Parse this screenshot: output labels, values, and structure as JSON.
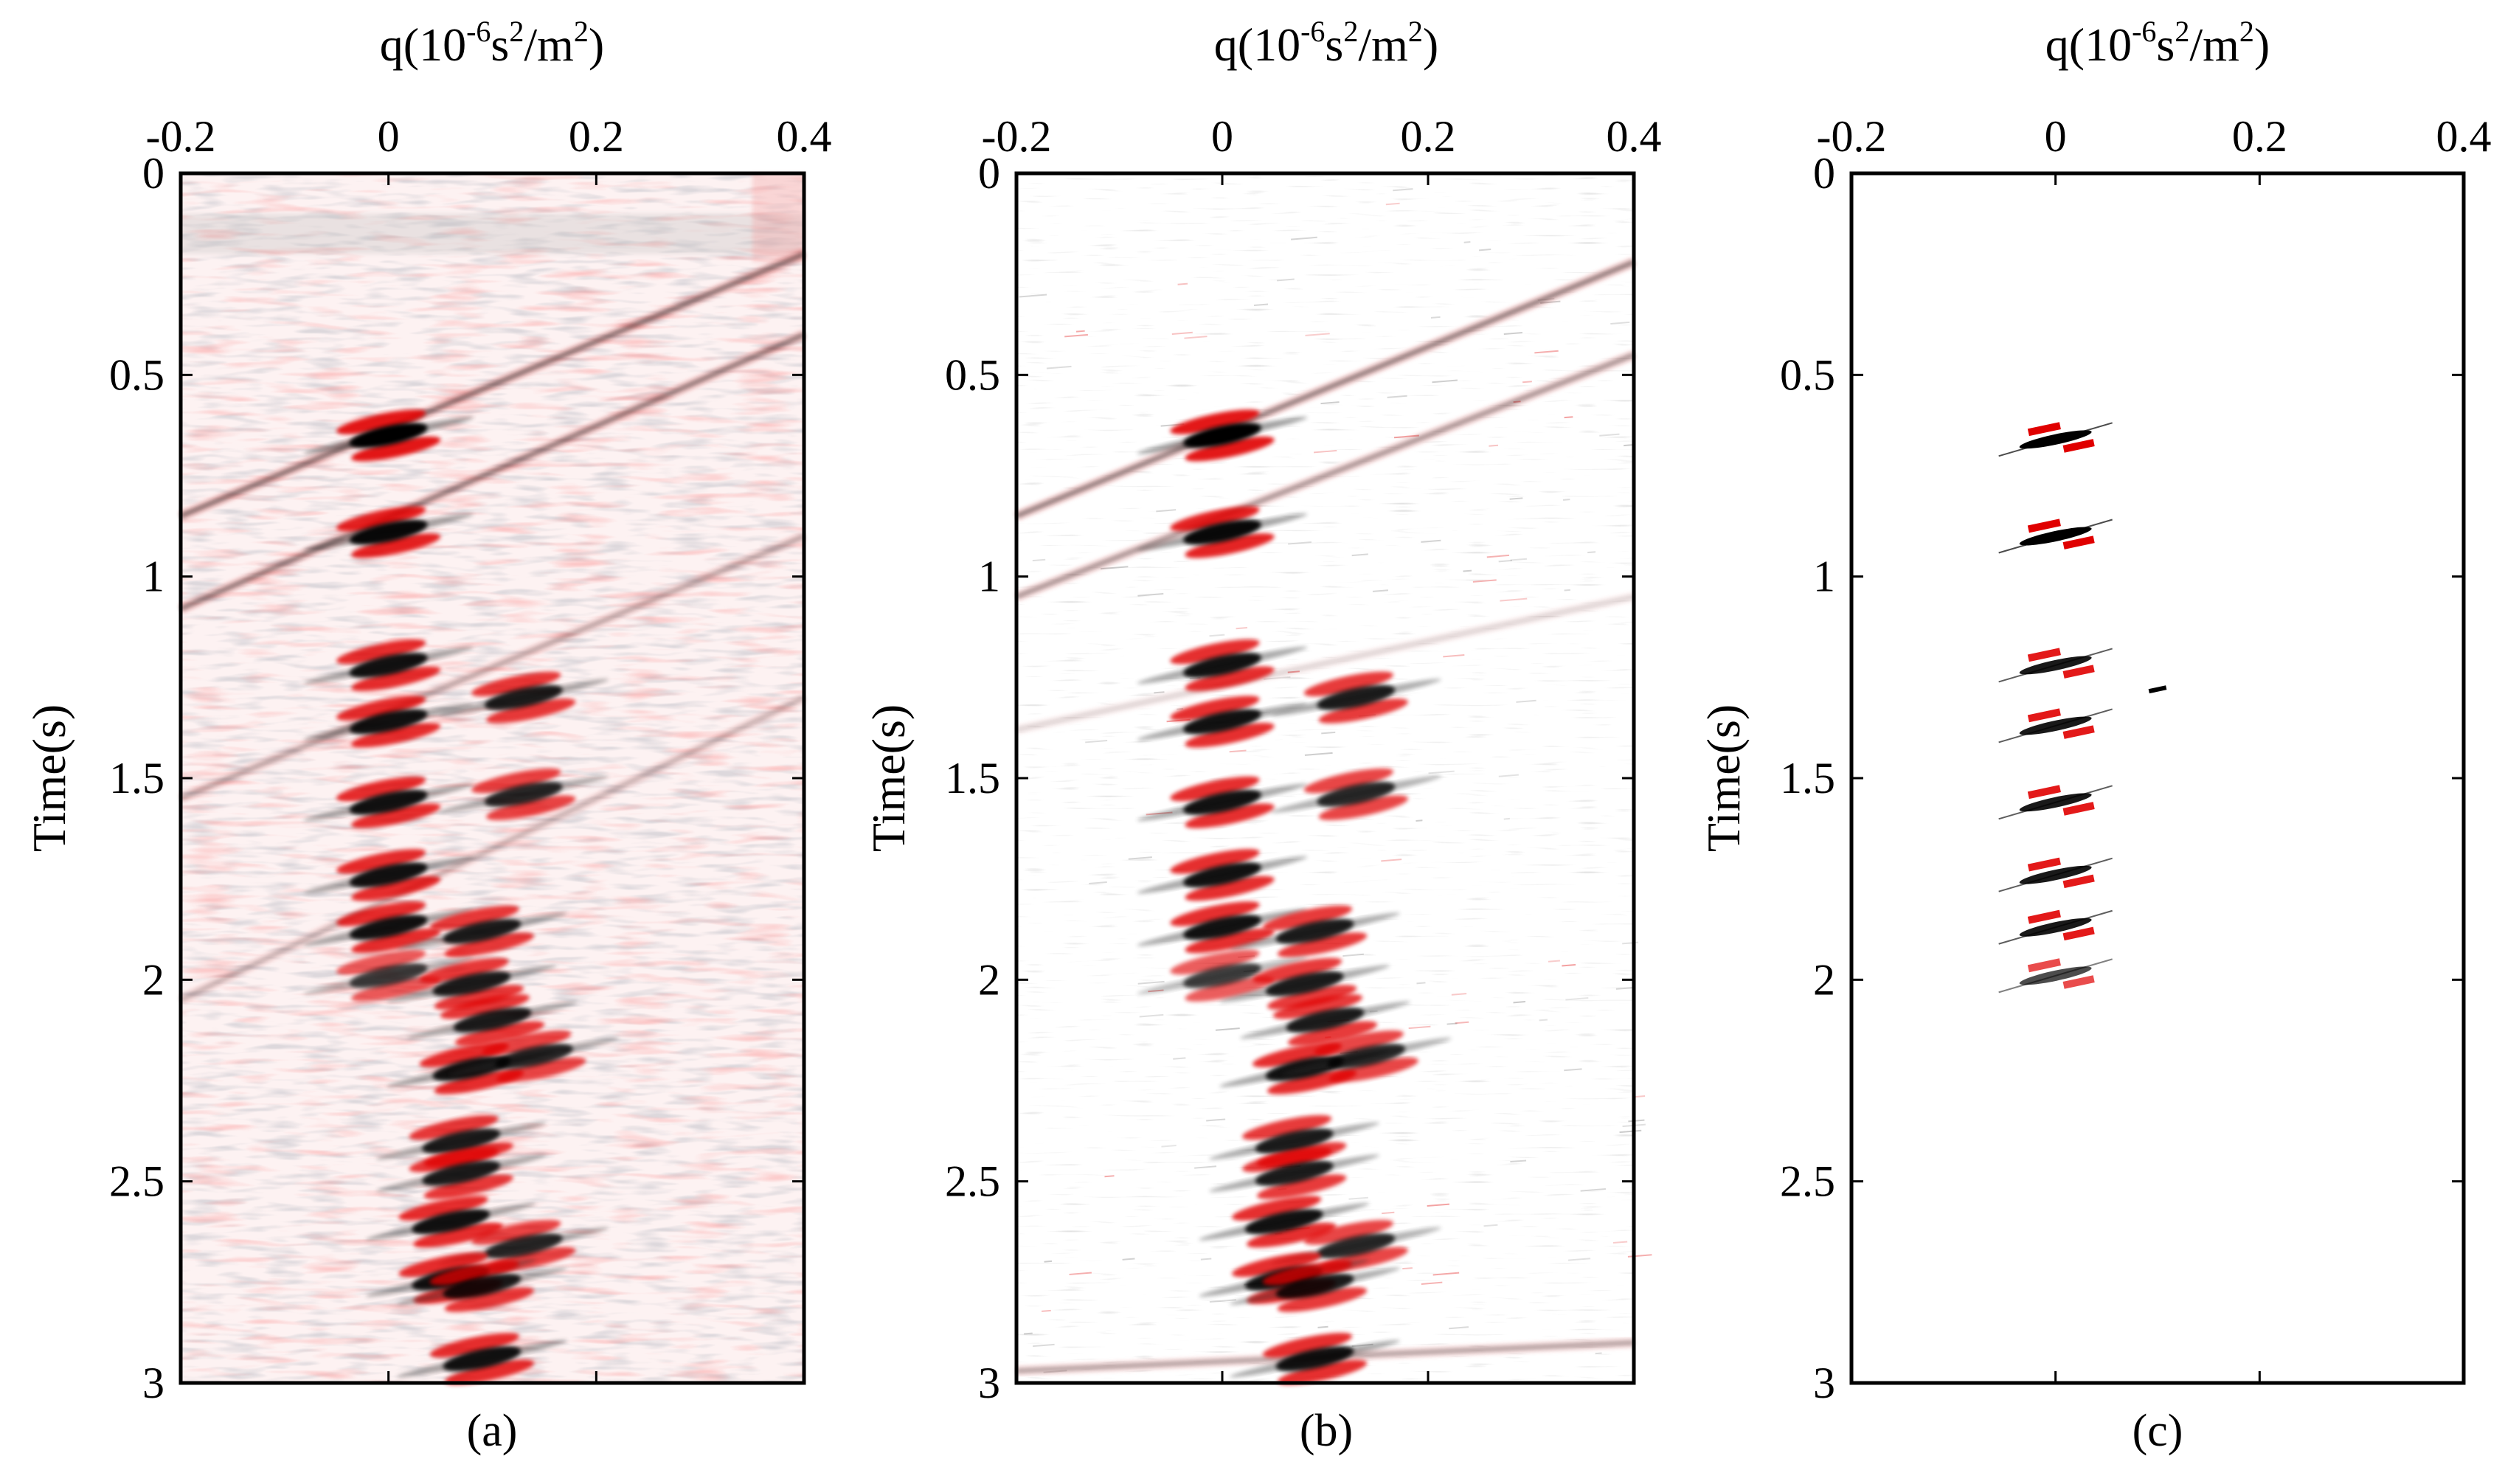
{
  "chart_data": [
    {
      "type": "heatmap",
      "panel_label": "(a)",
      "xlabel": "q(10-6s2/m2)",
      "xlabel_parts": {
        "prefix": "q(10",
        "exp1": "-6",
        "mid1": "s",
        "exp2": "2",
        "mid2": "/m",
        "exp3": "2",
        "suffix": ")"
      },
      "ylabel": "Time(s)",
      "xlim": [
        -0.2,
        0.4
      ],
      "ylim": [
        0,
        3
      ],
      "xticks": [
        -0.2,
        0,
        0.2,
        0.4
      ],
      "xtick_labels": [
        "-0.2",
        "0",
        "0.2",
        "0.4"
      ],
      "yticks": [
        0,
        0.5,
        1,
        1.5,
        2,
        2.5,
        3
      ],
      "ytick_labels": [
        "0",
        "0.5",
        "1",
        "1.5",
        "2",
        "2.5",
        "3"
      ],
      "x_axis_position": "top",
      "y_reversed": true,
      "background": "noisy",
      "colors": {
        "positive": "#000000",
        "negative": "#e00000"
      },
      "noise_strength": 1.0,
      "linear_events": [
        {
          "t_at_min": 0.85,
          "t_at_max": 0.2,
          "strength": 0.55
        },
        {
          "t_at_min": 1.08,
          "t_at_max": 0.4,
          "strength": 0.5
        },
        {
          "t_at_min": 1.55,
          "t_at_max": 0.9,
          "strength": 0.3
        },
        {
          "t_at_min": 2.05,
          "t_at_max": 1.3,
          "strength": 0.25
        }
      ],
      "events": [
        {
          "q": 0.0,
          "t": 0.65,
          "strength": 1.0
        },
        {
          "q": 0.0,
          "t": 0.89,
          "strength": 0.95
        },
        {
          "q": 0.0,
          "t": 1.22,
          "strength": 0.9
        },
        {
          "q": 0.0,
          "t": 1.36,
          "strength": 0.9
        },
        {
          "q": 0.13,
          "t": 1.3,
          "strength": 0.85
        },
        {
          "q": 0.0,
          "t": 1.56,
          "strength": 0.9
        },
        {
          "q": 0.13,
          "t": 1.54,
          "strength": 0.8
        },
        {
          "q": 0.0,
          "t": 1.74,
          "strength": 0.9
        },
        {
          "q": 0.0,
          "t": 1.87,
          "strength": 0.9
        },
        {
          "q": 0.09,
          "t": 1.88,
          "strength": 0.85
        },
        {
          "q": 0.0,
          "t": 1.99,
          "strength": 0.7
        },
        {
          "q": 0.08,
          "t": 2.01,
          "strength": 0.85
        },
        {
          "q": 0.1,
          "t": 2.1,
          "strength": 0.85
        },
        {
          "q": 0.08,
          "t": 2.22,
          "strength": 0.9
        },
        {
          "q": 0.14,
          "t": 2.19,
          "strength": 0.8
        },
        {
          "q": 0.07,
          "t": 2.4,
          "strength": 0.85
        },
        {
          "q": 0.07,
          "t": 2.48,
          "strength": 0.85
        },
        {
          "q": 0.06,
          "t": 2.6,
          "strength": 0.9
        },
        {
          "q": 0.13,
          "t": 2.66,
          "strength": 0.8
        },
        {
          "q": 0.06,
          "t": 2.74,
          "strength": 0.9
        },
        {
          "q": 0.09,
          "t": 2.76,
          "strength": 0.85
        },
        {
          "q": 0.09,
          "t": 2.94,
          "strength": 0.9
        }
      ]
    },
    {
      "type": "heatmap",
      "panel_label": "(b)",
      "xlabel": "q(10-6s2/m2)",
      "xlabel_parts": {
        "prefix": "q(10",
        "exp1": "-6",
        "mid1": "s",
        "exp2": "2",
        "mid2": "/m",
        "exp3": "2",
        "suffix": ")"
      },
      "ylabel": "Time(s)",
      "xlim": [
        -0.2,
        0.4
      ],
      "ylim": [
        0,
        3
      ],
      "xticks": [
        -0.2,
        0,
        0.2,
        0.4
      ],
      "xtick_labels": [
        "-0.2",
        "0",
        "0.2",
        "0.4"
      ],
      "yticks": [
        0,
        0.5,
        1,
        1.5,
        2,
        2.5,
        3
      ],
      "ytick_labels": [
        "0",
        "0.5",
        "1",
        "1.5",
        "2",
        "2.5",
        "3"
      ],
      "x_axis_position": "top",
      "y_reversed": true,
      "background": "clean",
      "colors": {
        "positive": "#000000",
        "negative": "#e00000"
      },
      "noise_strength": 0.12,
      "linear_events": [
        {
          "t_at_min": 0.85,
          "t_at_max": 0.22,
          "strength": 0.5
        },
        {
          "t_at_min": 1.05,
          "t_at_max": 0.45,
          "strength": 0.4
        },
        {
          "t_at_min": 1.38,
          "t_at_max": 1.05,
          "strength": 0.15
        },
        {
          "t_at_min": 2.97,
          "t_at_max": 2.9,
          "strength": 0.35
        }
      ],
      "events": [
        {
          "q": 0.0,
          "t": 0.65,
          "strength": 1.0
        },
        {
          "q": 0.0,
          "t": 0.89,
          "strength": 0.95
        },
        {
          "q": 0.0,
          "t": 1.22,
          "strength": 0.9
        },
        {
          "q": 0.0,
          "t": 1.36,
          "strength": 0.9
        },
        {
          "q": 0.13,
          "t": 1.3,
          "strength": 0.85
        },
        {
          "q": 0.0,
          "t": 1.56,
          "strength": 0.9
        },
        {
          "q": 0.13,
          "t": 1.54,
          "strength": 0.8
        },
        {
          "q": 0.0,
          "t": 1.74,
          "strength": 0.9
        },
        {
          "q": 0.0,
          "t": 1.87,
          "strength": 0.9
        },
        {
          "q": 0.09,
          "t": 1.88,
          "strength": 0.85
        },
        {
          "q": 0.0,
          "t": 1.99,
          "strength": 0.7
        },
        {
          "q": 0.08,
          "t": 2.01,
          "strength": 0.85
        },
        {
          "q": 0.1,
          "t": 2.1,
          "strength": 0.85
        },
        {
          "q": 0.08,
          "t": 2.22,
          "strength": 0.9
        },
        {
          "q": 0.14,
          "t": 2.19,
          "strength": 0.8
        },
        {
          "q": 0.07,
          "t": 2.4,
          "strength": 0.85
        },
        {
          "q": 0.07,
          "t": 2.48,
          "strength": 0.85
        },
        {
          "q": 0.06,
          "t": 2.6,
          "strength": 0.9
        },
        {
          "q": 0.13,
          "t": 2.66,
          "strength": 0.8
        },
        {
          "q": 0.06,
          "t": 2.74,
          "strength": 0.9
        },
        {
          "q": 0.09,
          "t": 2.76,
          "strength": 0.85
        },
        {
          "q": 0.09,
          "t": 2.94,
          "strength": 0.9
        }
      ]
    },
    {
      "type": "heatmap",
      "panel_label": "(c)",
      "xlabel": "q(10-6s2/m2)",
      "xlabel_parts": {
        "prefix": "q(10",
        "exp1": "-6",
        "mid1": "s",
        "exp2": "2",
        "mid2": "/m",
        "exp3": "2",
        "suffix": ")"
      },
      "ylabel": "Time(s)",
      "xlim": [
        -0.2,
        0.4
      ],
      "ylim": [
        0,
        3
      ],
      "xticks": [
        -0.2,
        0,
        0.2,
        0.4
      ],
      "xtick_labels": [
        "-0.2",
        "0",
        "0.2",
        "0.4"
      ],
      "yticks": [
        0,
        0.5,
        1,
        1.5,
        2,
        2.5,
        3
      ],
      "ytick_labels": [
        "0",
        "0.5",
        "1",
        "1.5",
        "2",
        "2.5",
        "3"
      ],
      "x_axis_position": "top",
      "y_reversed": true,
      "background": "blank",
      "colors": {
        "positive": "#000000",
        "negative": "#e00000"
      },
      "noise_strength": 0,
      "linear_events": [],
      "events": [
        {
          "q": 0.0,
          "t": 0.66,
          "strength": 1.0,
          "shape": "thin"
        },
        {
          "q": 0.0,
          "t": 0.9,
          "strength": 1.0,
          "shape": "thin"
        },
        {
          "q": 0.0,
          "t": 1.22,
          "strength": 0.9,
          "shape": "thin"
        },
        {
          "q": 0.0,
          "t": 1.37,
          "strength": 0.9,
          "shape": "thin"
        },
        {
          "q": 0.1,
          "t": 1.28,
          "strength": 0.6,
          "shape": "dot"
        },
        {
          "q": 0.0,
          "t": 1.56,
          "strength": 0.9,
          "shape": "thin"
        },
        {
          "q": 0.0,
          "t": 1.74,
          "strength": 0.9,
          "shape": "thin"
        },
        {
          "q": 0.0,
          "t": 1.87,
          "strength": 0.9,
          "shape": "thin"
        },
        {
          "q": 0.0,
          "t": 1.99,
          "strength": 0.7,
          "shape": "thin"
        }
      ]
    }
  ]
}
